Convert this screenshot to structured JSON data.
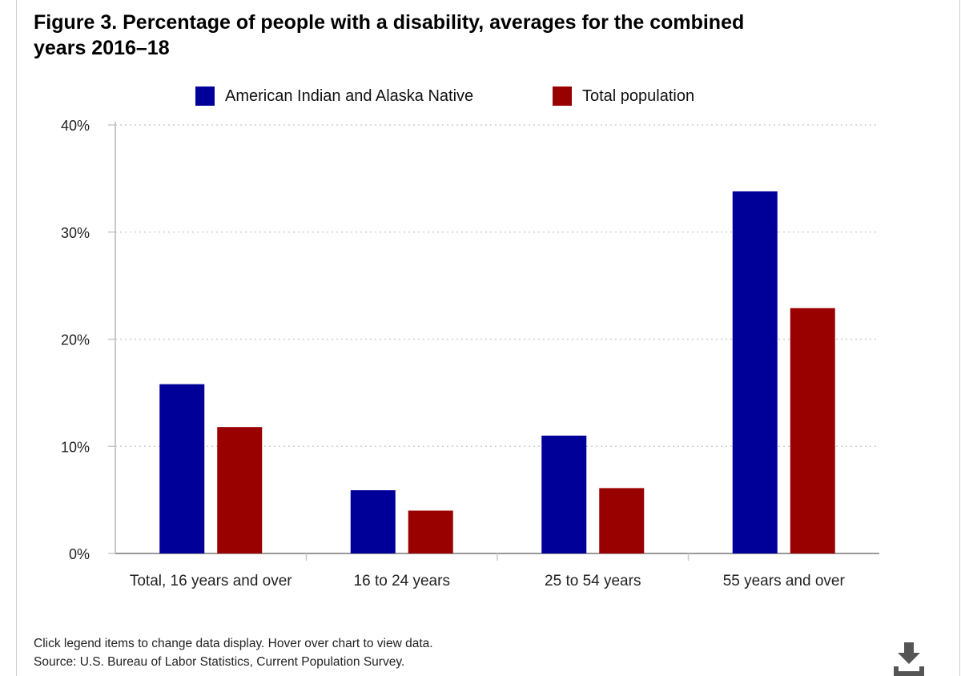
{
  "title_line1": "Figure 3. Percentage of people with a disability, averages for the combined",
  "title_line2": "years 2016–18",
  "footnote": {
    "line1": "Click legend items to change data display. Hover over chart to view data.",
    "line2": "Source: U.S. Bureau of Labor Statistics, Current Population Survey."
  },
  "download_icon": "download-icon",
  "chart_data": {
    "type": "bar",
    "title": "Figure 3. Percentage of people with a disability, averages for the combined years 2016–18",
    "categories": [
      "Total, 16 years and over",
      "16 to 24 years",
      "25 to 54 years",
      "55 years and over"
    ],
    "series": [
      {
        "name": "American Indian and Alaska Native",
        "color": "#000099",
        "values": [
          15.8,
          5.9,
          11.0,
          33.8
        ]
      },
      {
        "name": "Total population",
        "color": "#990000",
        "values": [
          11.8,
          4.0,
          6.1,
          22.9
        ]
      }
    ],
    "ylim": [
      0,
      40
    ],
    "yticks": [
      "0%",
      "10%",
      "20%",
      "30%",
      "40%"
    ],
    "ytick_values": [
      0,
      10,
      20,
      30,
      40
    ],
    "grid": true,
    "legend": "top"
  }
}
